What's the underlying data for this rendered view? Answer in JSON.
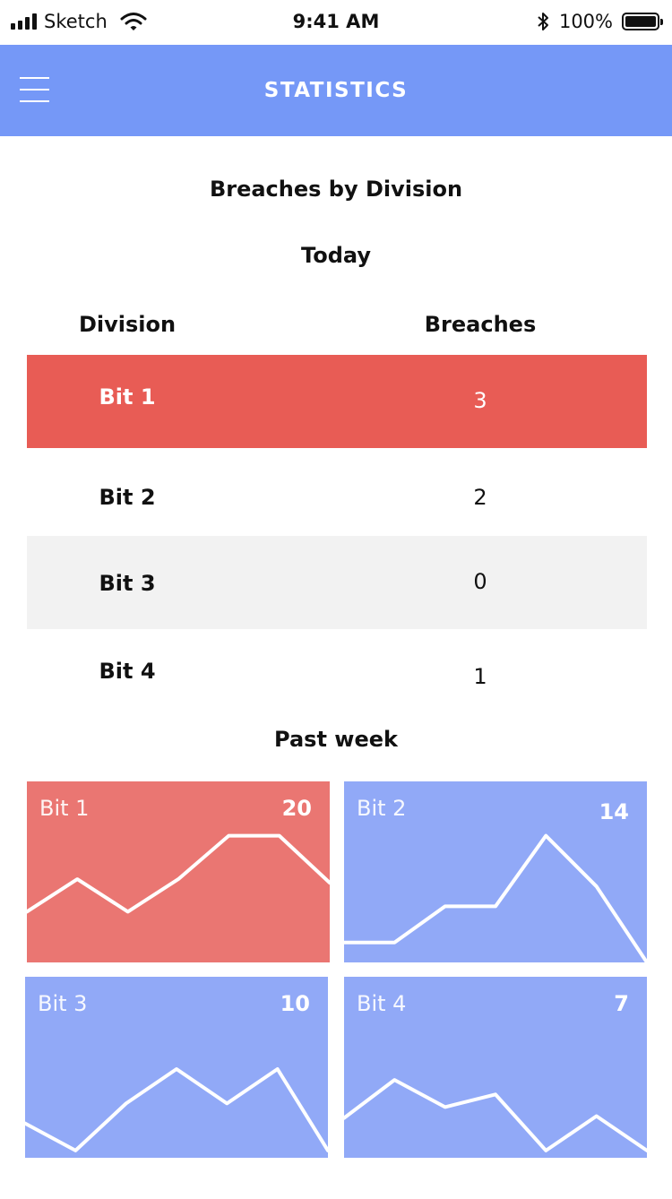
{
  "status_bar": {
    "carrier": "Sketch",
    "time": "9:41 AM",
    "battery": "100%"
  },
  "navbar": {
    "title": "STATISTICS",
    "menu_icon": "hamburger-menu-icon"
  },
  "page": {
    "title": "Breaches by Division",
    "today_label": "Today",
    "past_week_label": "Past week"
  },
  "table": {
    "headers": {
      "division": "Division",
      "breaches": "Breaches"
    },
    "rows": [
      {
        "division": "Bit 1",
        "breaches": "3"
      },
      {
        "division": "Bit 2",
        "breaches": "2"
      },
      {
        "division": "Bit 3",
        "breaches": "0"
      },
      {
        "division": "Bit 4",
        "breaches": "1"
      }
    ]
  },
  "colors": {
    "accent": "#7598f7",
    "alert_row": "#e85c55",
    "alert_card": "#ea7672",
    "card_blue": "#91a9f7",
    "row_alt": "#f2f2f2"
  },
  "chart_data": {
    "type": "line",
    "x": [
      1,
      2,
      3,
      4,
      5,
      6,
      7
    ],
    "series": [
      {
        "name": "Bit 1",
        "total": "20",
        "values": [
          0.28,
          0.46,
          0.28,
          0.46,
          0.7,
          0.7,
          0.44
        ]
      },
      {
        "name": "Bit 2",
        "total": "14",
        "values": [
          0.11,
          0.11,
          0.31,
          0.31,
          0.7,
          0.42,
          0.0
        ]
      },
      {
        "name": "Bit 3",
        "total": "10",
        "values": [
          0.19,
          0.04,
          0.3,
          0.49,
          0.3,
          0.49,
          0.04
        ]
      },
      {
        "name": "Bit 4",
        "total": "7",
        "values": [
          0.22,
          0.43,
          0.28,
          0.35,
          0.04,
          0.23,
          0.04
        ]
      }
    ]
  }
}
